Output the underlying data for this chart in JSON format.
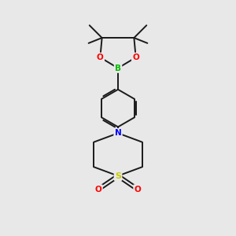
{
  "bg_color": "#e8e8e8",
  "bond_color": "#1a1a1a",
  "bond_width": 1.4,
  "atom_colors": {
    "B": "#00bb00",
    "O": "#ff0000",
    "N": "#0000ff",
    "S": "#cccc00",
    "C": "#1a1a1a"
  },
  "fig_width": 3.0,
  "fig_height": 3.0,
  "xlim": [
    0,
    10
  ],
  "ylim": [
    0,
    13
  ]
}
